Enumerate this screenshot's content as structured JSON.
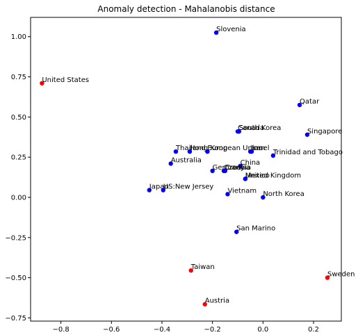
{
  "chart_data": {
    "type": "scatter",
    "title": "Anomaly detection - Mahalanobis distance",
    "xlabel": "",
    "ylabel": "",
    "xlim": [
      -0.92,
      0.31
    ],
    "ylim": [
      -0.77,
      1.12
    ],
    "xticks": [
      -0.8,
      -0.6,
      -0.4,
      -0.2,
      0.0,
      0.2
    ],
    "xtick_labels": [
      "−0.8",
      "−0.6",
      "−0.4",
      "−0.2",
      "0.0",
      "0.2"
    ],
    "yticks": [
      -0.75,
      -0.5,
      -0.25,
      0.0,
      0.25,
      0.5,
      0.75,
      1.0
    ],
    "ytick_labels": [
      "−0.75",
      "−0.50",
      "−0.25",
      "0.00",
      "0.25",
      "0.50",
      "0.75",
      "1.00"
    ],
    "grid": false,
    "legend": "none",
    "colors": {
      "normal": "#0000ff",
      "anomaly": "#ff0000"
    },
    "points": [
      {
        "label": "Slovenia",
        "x": -0.185,
        "y": 1.025,
        "anomaly": false
      },
      {
        "label": "United States",
        "x": -0.875,
        "y": 0.71,
        "anomaly": true
      },
      {
        "label": "Qatar",
        "x": 0.145,
        "y": 0.575,
        "anomaly": false
      },
      {
        "label": "Canada",
        "x": -0.1,
        "y": 0.41,
        "anomaly": false
      },
      {
        "label": "South Korea",
        "x": -0.095,
        "y": 0.41,
        "anomaly": false
      },
      {
        "label": "Singapore",
        "x": 0.175,
        "y": 0.39,
        "anomaly": false
      },
      {
        "label": "Thailand",
        "x": -0.345,
        "y": 0.285,
        "anomaly": false
      },
      {
        "label": "Hong Kong",
        "x": -0.29,
        "y": 0.285,
        "anomaly": false
      },
      {
        "label": "European Union",
        "x": -0.22,
        "y": 0.285,
        "anomaly": false
      },
      {
        "label": "Israel",
        "x": -0.05,
        "y": 0.285,
        "anomaly": false
      },
      {
        "label": "Iran",
        "x": -0.045,
        "y": 0.285,
        "anomaly": false
      },
      {
        "label": "Trinidad and Tobago",
        "x": 0.04,
        "y": 0.26,
        "anomaly": false
      },
      {
        "label": "Australia",
        "x": -0.365,
        "y": 0.21,
        "anomaly": false
      },
      {
        "label": "China",
        "x": -0.09,
        "y": 0.195,
        "anomaly": false
      },
      {
        "label": "Germany",
        "x": -0.2,
        "y": 0.165,
        "anomaly": false
      },
      {
        "label": "Czechia",
        "x": -0.155,
        "y": 0.165,
        "anomaly": false
      },
      {
        "label": "Croatia",
        "x": -0.15,
        "y": 0.165,
        "anomaly": false
      },
      {
        "label": "Mexico",
        "x": -0.07,
        "y": 0.115,
        "anomaly": false
      },
      {
        "label": "United Kingdom",
        "x": -0.07,
        "y": 0.115,
        "anomaly": false
      },
      {
        "label": "Japan",
        "x": -0.45,
        "y": 0.045,
        "anomaly": false
      },
      {
        "label": "US:New Jersey",
        "x": -0.395,
        "y": 0.045,
        "anomaly": false
      },
      {
        "label": "Vietnam",
        "x": -0.14,
        "y": 0.02,
        "anomaly": false
      },
      {
        "label": "North Korea",
        "x": 0.0,
        "y": 0.0,
        "anomaly": false
      },
      {
        "label": "San Marino",
        "x": -0.105,
        "y": -0.215,
        "anomaly": false
      },
      {
        "label": "Taiwan",
        "x": -0.285,
        "y": -0.455,
        "anomaly": true
      },
      {
        "label": "Sweden",
        "x": 0.255,
        "y": -0.5,
        "anomaly": true
      },
      {
        "label": "Austria",
        "x": -0.23,
        "y": -0.665,
        "anomaly": true
      }
    ]
  }
}
